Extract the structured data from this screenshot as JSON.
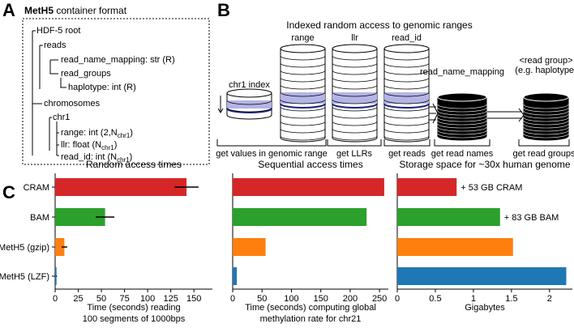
{
  "panel_a": {
    "letter": "A",
    "title_bold": "MetH5",
    "title_rest": " container format",
    "nodes": [
      {
        "label": "HDF-5 root"
      },
      {
        "label": "reads"
      },
      {
        "label": "read_name_mapping: str (R)"
      },
      {
        "label": "read_groups"
      },
      {
        "label": "haplotype: int (R)"
      },
      {
        "label": "chromosomes"
      },
      {
        "label": "chr1"
      },
      {
        "label": "range: int (2,N",
        "sub": "chr1",
        "tail": ")"
      },
      {
        "label": "llr: float (N",
        "sub": "chr1",
        "tail": ")"
      },
      {
        "label": "read_id: int (N",
        "sub": "chr1",
        "tail": ")"
      }
    ]
  },
  "panel_b": {
    "letter": "B",
    "title": "Indexed random access to genomic ranges",
    "labels": [
      "chr1 index",
      "range",
      "llr",
      "read_id",
      "read_name_mapping",
      "<read group>",
      "(e.g. haplotype)"
    ],
    "actions": [
      "get values in genomic range",
      "get LLRs",
      "get reads",
      "get read names",
      "get read groups"
    ]
  },
  "panel_c_letter": "C",
  "chart_data": [
    {
      "type": "bar",
      "orientation": "horizontal",
      "title": "Random access times",
      "categories": [
        "CRAM",
        "BAM",
        "MetH5 (gzip)",
        "MetH5 (LZF)"
      ],
      "values": [
        142,
        54,
        10,
        1.5
      ],
      "errors": [
        13,
        10,
        3,
        0.5
      ],
      "colors": [
        "#d62728",
        "#2ca02c",
        "#ff7f0e",
        "#1f77b4"
      ],
      "xlim": [
        0,
        170
      ],
      "xticks": [
        0,
        25,
        50,
        75,
        100,
        125,
        150
      ],
      "xlabel": [
        "Time (seconds) reading",
        "100 segments of 1000bps"
      ]
    },
    {
      "type": "bar",
      "orientation": "horizontal",
      "title": "Sequential access times",
      "categories": [
        null,
        null,
        null,
        null
      ],
      "values": [
        258,
        228,
        56,
        7
      ],
      "colors": [
        "#d62728",
        "#2ca02c",
        "#ff7f0e",
        "#1f77b4"
      ],
      "xlim": [
        0,
        265
      ],
      "xticks": [
        0,
        50,
        100,
        150,
        200,
        250
      ],
      "xlabel": [
        "Time (seconds) computing global",
        "methylation rate for chr21"
      ]
    },
    {
      "type": "bar",
      "orientation": "horizontal",
      "title": "Storage space for ~30x human genome",
      "categories": [
        null,
        null,
        null,
        null
      ],
      "values": [
        0.78,
        1.35,
        1.52,
        2.22
      ],
      "colors": [
        "#d62728",
        "#2ca02c",
        "#ff7f0e",
        "#1f77b4"
      ],
      "xlim": [
        0,
        2.3
      ],
      "xticks": [
        0,
        0.5,
        1,
        1.5,
        2
      ],
      "xlabel": [
        "Gigabytes"
      ],
      "annotations": [
        "+ 53 GB CRAM",
        "+ 83 GB BAM"
      ]
    }
  ]
}
